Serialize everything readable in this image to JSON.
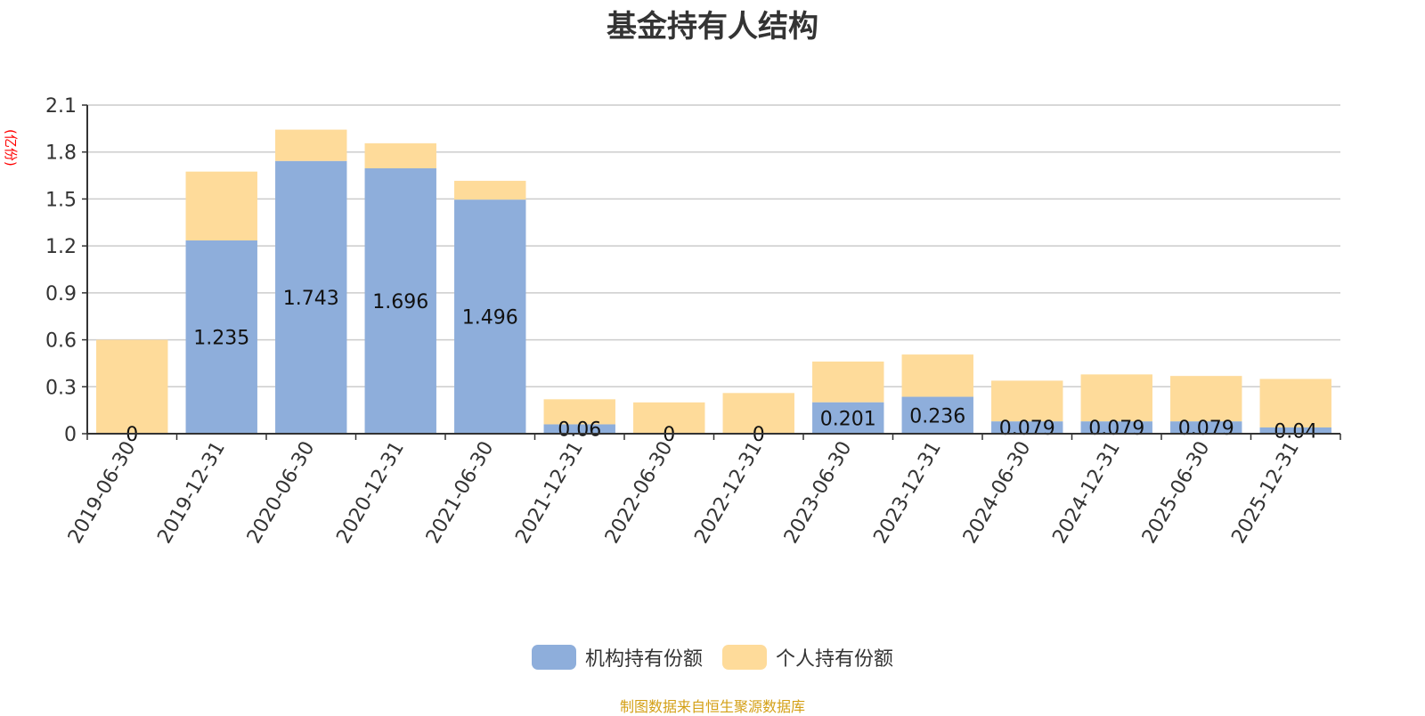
{
  "chart_data": {
    "type": "bar",
    "stacked": true,
    "title": "基金持有人结构",
    "unit_label": "(亿份)",
    "categories": [
      "2019-06-30",
      "2019-12-31",
      "2020-06-30",
      "2020-12-31",
      "2021-06-30",
      "2021-12-31",
      "2022-06-30",
      "2022-12-31",
      "2023-06-30",
      "2023-12-31",
      "2024-06-30",
      "2024-12-31",
      "2025-06-30",
      "2025-12-31"
    ],
    "series": [
      {
        "name": "机构持有份额",
        "color": "#8eaedb",
        "values": [
          0,
          1.235,
          1.743,
          1.696,
          1.496,
          0.06,
          0,
          0,
          0.201,
          0.236,
          0.079,
          0.079,
          0.079,
          0.04
        ],
        "labels": [
          "0",
          "1.235",
          "1.743",
          "1.696",
          "1.496",
          "0.06",
          "0",
          "0",
          "0.201",
          "0.236",
          "0.079",
          "0.079",
          "0.079",
          "0.04"
        ]
      },
      {
        "name": "个人持有份额",
        "color": "#fedb9a",
        "values": [
          0.6,
          0.44,
          0.2,
          0.16,
          0.12,
          0.16,
          0.2,
          0.26,
          0.26,
          0.27,
          0.26,
          0.3,
          0.29,
          0.31
        ]
      }
    ],
    "ylim": [
      0,
      2.1
    ],
    "yticks": [
      "0",
      "0.3",
      "0.6",
      "0.9",
      "1.2",
      "1.5",
      "1.8",
      "2.1"
    ],
    "grid": true,
    "legend_position": "bottom"
  },
  "footer": {
    "source": "制图数据来自恒生聚源数据库"
  }
}
